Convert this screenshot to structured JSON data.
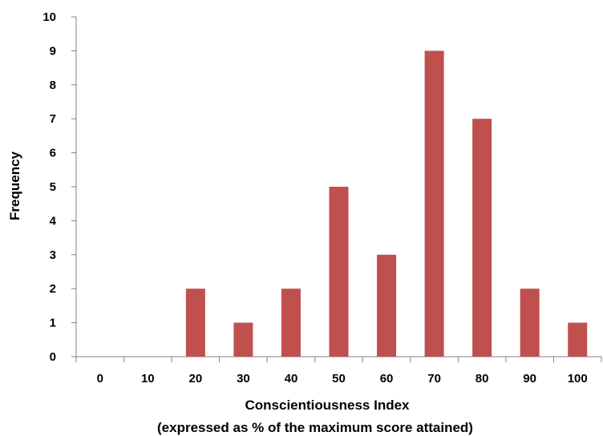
{
  "chart_data": {
    "type": "bar",
    "categories": [
      "0",
      "10",
      "20",
      "30",
      "40",
      "50",
      "60",
      "70",
      "80",
      "90",
      "100"
    ],
    "values": [
      0,
      0,
      2,
      1,
      2,
      5,
      3,
      9,
      7,
      2,
      1
    ],
    "xlabel": "Conscientiousness Index",
    "xlabel_line2": "(expressed as % of the maximum score attained)",
    "ylabel": "Frequency",
    "ylim": [
      0,
      10
    ],
    "yticks": [
      0,
      1,
      2,
      3,
      4,
      5,
      6,
      7,
      8,
      9,
      10
    ],
    "grid": false,
    "legend": "none",
    "bar_color": "#c0504d",
    "axis_color": "#808080"
  }
}
